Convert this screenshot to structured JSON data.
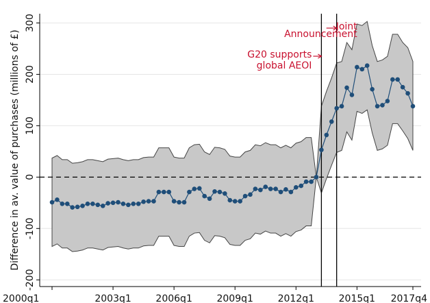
{
  "chart_data": {
    "type": "line",
    "y_label": "Difference in av. value of purchases (millions of £)",
    "categories": [
      "2000q1",
      null,
      null,
      null,
      null,
      null,
      null,
      null,
      null,
      null,
      null,
      null,
      "2003q1",
      null,
      null,
      null,
      null,
      null,
      null,
      null,
      null,
      null,
      null,
      null,
      "2006q1",
      null,
      null,
      null,
      null,
      null,
      null,
      null,
      null,
      null,
      null,
      null,
      "2009q1",
      null,
      null,
      null,
      null,
      null,
      null,
      null,
      null,
      null,
      null,
      null,
      "2012q1",
      null,
      null,
      null,
      null,
      null,
      null,
      null,
      null,
      null,
      null,
      null,
      "2015q1",
      null,
      null,
      null,
      null,
      null,
      null,
      null,
      null,
      null,
      null,
      "2017q4"
    ],
    "series": [
      {
        "color": "#1f4e79",
        "values": [
          -49,
          -44,
          -52,
          -52,
          -59,
          -58,
          -56,
          -52,
          -52,
          -54,
          -56,
          -51,
          -50,
          -49,
          -52,
          -54,
          -52,
          -52,
          -48,
          -47,
          -47,
          -29,
          -29,
          -29,
          -47,
          -49,
          -49,
          -29,
          -23,
          -22,
          -37,
          -42,
          -28,
          -29,
          -32,
          -45,
          -47,
          -47,
          -37,
          -34,
          -23,
          -25,
          -19,
          -23,
          -23,
          -29,
          -24,
          -29,
          -20,
          -17,
          -9,
          -9,
          0,
          53,
          82,
          108,
          134,
          138,
          174,
          160,
          214,
          210,
          217,
          171,
          138,
          140,
          148,
          190,
          190,
          175,
          163,
          138
        ],
        "upper": [
          37,
          42,
          34,
          34,
          27,
          28,
          30,
          34,
          34,
          32,
          30,
          35,
          36,
          37,
          34,
          32,
          34,
          34,
          38,
          39,
          39,
          57,
          57,
          57,
          39,
          37,
          37,
          57,
          63,
          64,
          49,
          44,
          58,
          57,
          54,
          41,
          39,
          39,
          49,
          52,
          63,
          61,
          67,
          63,
          63,
          57,
          62,
          57,
          66,
          69,
          77,
          77,
          0,
          138,
          167,
          193,
          222,
          225,
          262,
          248,
          298,
          295,
          303,
          256,
          225,
          228,
          235,
          278,
          278,
          262,
          252,
          225
        ],
        "lower": [
          -135,
          -130,
          -138,
          -138,
          -145,
          -144,
          -142,
          -138,
          -138,
          -140,
          -142,
          -137,
          -136,
          -135,
          -138,
          -140,
          -138,
          -138,
          -134,
          -133,
          -133,
          -115,
          -115,
          -115,
          -133,
          -135,
          -135,
          -115,
          -109,
          -108,
          -123,
          -128,
          -114,
          -115,
          -118,
          -131,
          -133,
          -133,
          -123,
          -120,
          -109,
          -111,
          -105,
          -109,
          -109,
          -115,
          -110,
          -115,
          -106,
          -103,
          -95,
          -95,
          0,
          -31,
          -3,
          23,
          48,
          52,
          88,
          72,
          128,
          124,
          131,
          86,
          52,
          55,
          62,
          104,
          104,
          90,
          75,
          52
        ],
        "band_color": "#c8c8c8"
      }
    ],
    "ylim": [
      -213,
      318
    ],
    "yticks": [
      -200,
      -100,
      0,
      100,
      200,
      300
    ],
    "grid": true,
    "vlines": [
      53,
      56
    ],
    "annotations": [
      {
        "lines": [
          "G20 supports",
          "global AEOI"
        ],
        "at": 53
      },
      {
        "lines": [
          "Joint",
          "Announcement"
        ],
        "at": 56
      }
    ]
  }
}
